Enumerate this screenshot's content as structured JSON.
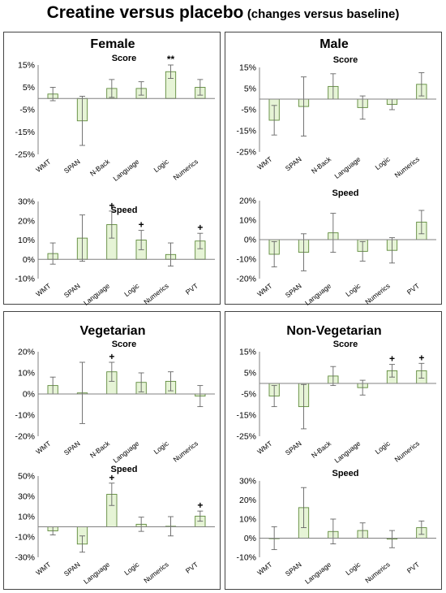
{
  "title": {
    "main": "Creatine versus placebo",
    "sub": "(changes versus baseline)"
  },
  "colors": {
    "bar_fill": "#e6f4d6",
    "bar_stroke": "#5f8a3c",
    "axis": "#808080",
    "error_bar": "#666666"
  },
  "panels": [
    {
      "title": "Female",
      "charts": [
        {
          "subtitle": "Score",
          "yticks": [
            15,
            5,
            -5,
            -15,
            -25
          ],
          "categories": [
            "WMT",
            "SPAN",
            "N-Back",
            "Language",
            "Logic",
            "Numerics"
          ]
        },
        {
          "subtitle": "Speed",
          "yticks": [
            30,
            20,
            10,
            0,
            -10
          ],
          "categories": [
            "WMT",
            "SPAN",
            "Language",
            "Logic",
            "Numerics",
            "PVT"
          ]
        }
      ]
    },
    {
      "title": "Male",
      "charts": [
        {
          "subtitle": "Score",
          "yticks": [
            15,
            5,
            -5,
            -15,
            -25
          ],
          "categories": [
            "WMT",
            "SPAN",
            "N-Back",
            "Language",
            "Logic",
            "Numerics"
          ]
        },
        {
          "subtitle": "Speed",
          "yticks": [
            20,
            10,
            0,
            -10,
            -20
          ],
          "categories": [
            "WMT",
            "SPAN",
            "Language",
            "Logic",
            "Numerics",
            "PVT"
          ]
        }
      ]
    },
    {
      "title": "Vegetarian",
      "charts": [
        {
          "subtitle": "Score",
          "yticks": [
            20,
            10,
            0,
            -10,
            -20
          ],
          "categories": [
            "WMT",
            "SPAN",
            "N-Back",
            "Language",
            "Logic",
            "Numerics"
          ]
        },
        {
          "subtitle": "Speed",
          "yticks": [
            50,
            30,
            10,
            -10,
            -30
          ],
          "categories": [
            "WMT",
            "SPAN",
            "Language",
            "Logic",
            "Numerics",
            "PVT"
          ]
        }
      ]
    },
    {
      "title": "Non-Vegetarian",
      "charts": [
        {
          "subtitle": "Score",
          "yticks": [
            15,
            5,
            -5,
            -15,
            -25
          ],
          "categories": [
            "WMT",
            "SPAN",
            "N-Back",
            "Language",
            "Logic",
            "Numerics"
          ]
        },
        {
          "subtitle": "Speed",
          "yticks": [
            30,
            20,
            10,
            0,
            -10
          ],
          "categories": [
            "WMT",
            "SPAN",
            "Language",
            "Logic",
            "Numerics",
            "PVT"
          ]
        }
      ]
    }
  ],
  "chart_data": [
    {
      "type": "bar",
      "title": "Female",
      "subtitle": "Score",
      "ylim": [
        -25,
        15
      ],
      "tick_suffix": "%",
      "categories": [
        "WMT",
        "SPAN",
        "N-Back",
        "Language",
        "Logic",
        "Numerics"
      ],
      "values": [
        2,
        -10,
        4.5,
        4.5,
        12,
        5
      ],
      "errors": [
        3,
        11,
        4,
        3,
        3,
        3.5
      ],
      "annotations": [
        "",
        "",
        "",
        "",
        "**",
        ""
      ]
    },
    {
      "type": "bar",
      "title": "Female",
      "subtitle": "Speed",
      "ylim": [
        -10,
        30
      ],
      "tick_suffix": "%",
      "categories": [
        "WMT",
        "SPAN",
        "Language",
        "Logic",
        "Numerics",
        "PVT"
      ],
      "values": [
        3,
        11,
        18,
        10,
        2.5,
        9.5
      ],
      "errors": [
        5.5,
        12,
        7,
        5,
        6,
        4
      ],
      "annotations": [
        "",
        "",
        "+",
        "+",
        "",
        "+"
      ]
    },
    {
      "type": "bar",
      "title": "Male",
      "subtitle": "Score",
      "ylim": [
        -25,
        15
      ],
      "tick_suffix": "%",
      "categories": [
        "WMT",
        "SPAN",
        "N-Back",
        "Language",
        "Logic",
        "Numerics"
      ],
      "values": [
        -10,
        -3.5,
        6,
        -4,
        -2.5,
        7
      ],
      "errors": [
        7,
        14,
        6,
        5.5,
        2.5,
        5.5
      ],
      "annotations": [
        "",
        "",
        "",
        "",
        "",
        ""
      ]
    },
    {
      "type": "bar",
      "title": "Male",
      "subtitle": "Speed",
      "ylim": [
        -20,
        20
      ],
      "tick_suffix": "%",
      "categories": [
        "WMT",
        "SPAN",
        "Language",
        "Logic",
        "Numerics",
        "PVT"
      ],
      "values": [
        -7.5,
        -6.5,
        3.5,
        -6,
        -5.5,
        9
      ],
      "errors": [
        6.5,
        9.5,
        10,
        5,
        6.5,
        6
      ],
      "annotations": [
        "",
        "",
        "",
        "",
        "",
        ""
      ]
    },
    {
      "type": "bar",
      "title": "Vegetarian",
      "subtitle": "Score",
      "ylim": [
        -20,
        20
      ],
      "tick_suffix": "%",
      "categories": [
        "WMT",
        "SPAN",
        "N-Back",
        "Language",
        "Logic",
        "Numerics"
      ],
      "values": [
        4,
        0.5,
        10.5,
        5.5,
        6,
        -1
      ],
      "errors": [
        4,
        14.5,
        4.5,
        4.5,
        4.5,
        5
      ],
      "annotations": [
        "",
        "",
        "+",
        "",
        "",
        ""
      ]
    },
    {
      "type": "bar",
      "title": "Vegetarian",
      "subtitle": "Speed",
      "ylim": [
        -30,
        50
      ],
      "tick_suffix": "%",
      "categories": [
        "WMT",
        "SPAN",
        "Language",
        "Logic",
        "Numerics",
        "PVT"
      ],
      "values": [
        -4,
        -17,
        32,
        2.5,
        0.5,
        10.5
      ],
      "errors": [
        4,
        8,
        11,
        7,
        9.5,
        5
      ],
      "annotations": [
        "",
        "",
        "+",
        "",
        "",
        "+"
      ]
    },
    {
      "type": "bar",
      "title": "Non-Vegetarian",
      "subtitle": "Score",
      "ylim": [
        -25,
        15
      ],
      "tick_suffix": "%",
      "categories": [
        "WMT",
        "SPAN",
        "N-Back",
        "Language",
        "Logic",
        "Numerics"
      ],
      "values": [
        -6,
        -11,
        3.5,
        -2,
        6,
        6
      ],
      "errors": [
        5,
        10.5,
        4.5,
        3.5,
        3,
        3.5
      ],
      "annotations": [
        "",
        "",
        "",
        "",
        "+",
        "+"
      ]
    },
    {
      "type": "bar",
      "title": "Non-Vegetarian",
      "subtitle": "Speed",
      "ylim": [
        -10,
        30
      ],
      "tick_suffix": "%",
      "categories": [
        "WMT",
        "SPAN",
        "Language",
        "Logic",
        "Numerics",
        "PVT"
      ],
      "values": [
        0,
        16,
        3.5,
        4,
        -0.5,
        5.5
      ],
      "errors": [
        6,
        10.5,
        6.5,
        4,
        4.5,
        3.5
      ],
      "annotations": [
        "",
        "",
        "",
        "",
        "",
        ""
      ]
    }
  ]
}
